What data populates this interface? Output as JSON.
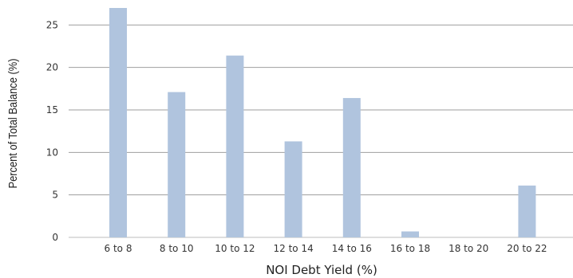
{
  "chart_data": {
    "type": "bar",
    "title": "",
    "xlabel": "NOI Debt Yield (%)",
    "ylabel": "Percent of Total Balance (%)",
    "categories": [
      "6 to 8",
      "8 to 10",
      "10 to 12",
      "12 to 14",
      "14 to 16",
      "16 to 18",
      "18 to 20",
      "20 to 22"
    ],
    "values": [
      27.0,
      17.1,
      21.4,
      11.3,
      16.4,
      0.7,
      0.0,
      6.1
    ],
    "ylim": [
      0,
      27
    ],
    "yticks": [
      0,
      5,
      10,
      15,
      20,
      25
    ],
    "grid": "horizontal",
    "legend": "none",
    "colors": {
      "bar": "#b0c4de",
      "grid": "#9e9e9e",
      "axis": "#bdbdbd"
    }
  }
}
